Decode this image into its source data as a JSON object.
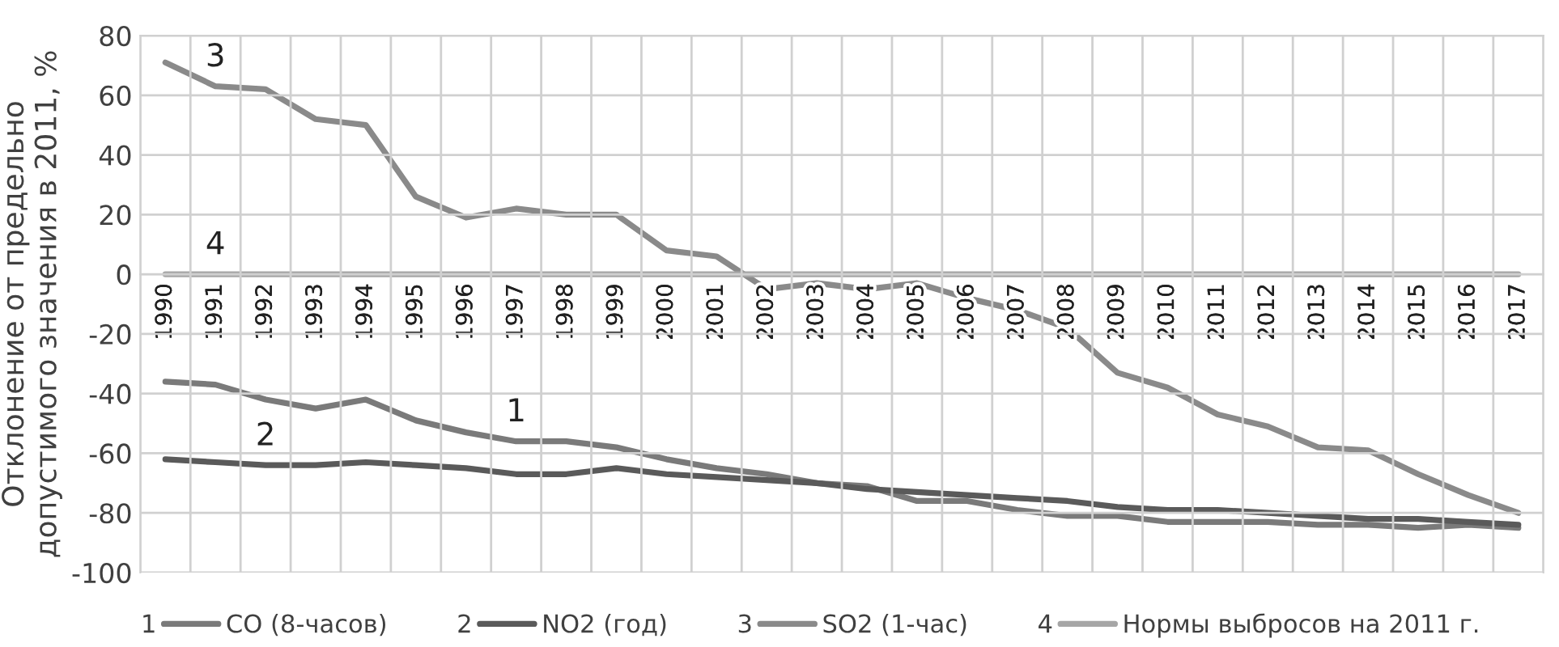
{
  "chart_data": {
    "type": "line",
    "ylabel": "Отклонение от предельно\nдопустимого значения в 2011, %",
    "categories": [
      "1990",
      "1991",
      "1992",
      "1993",
      "1994",
      "1995",
      "1996",
      "1997",
      "1998",
      "1999",
      "2000",
      "2001",
      "2002",
      "2003",
      "2004",
      "2005",
      "2006",
      "2007",
      "2008",
      "2009",
      "2010",
      "2011",
      "2012",
      "2013",
      "2014",
      "2015",
      "2016",
      "2017"
    ],
    "series": [
      {
        "name": "CO (8-часов)",
        "color": "#7a7a7a",
        "values": [
          -36,
          -37,
          -42,
          -45,
          -42,
          -49,
          -53,
          -56,
          -56,
          -58,
          -62,
          -65,
          -67,
          -70,
          -71,
          -76,
          -76,
          -79,
          -81,
          -81,
          -83,
          -83,
          -83,
          -84,
          -84,
          -85,
          -84,
          -85
        ]
      },
      {
        "name": "NO2 (год)",
        "color": "#5a5a5a",
        "values": [
          -62,
          -63,
          -64,
          -64,
          -63,
          -64,
          -65,
          -67,
          -67,
          -65,
          -67,
          -68,
          -69,
          -70,
          -72,
          -73,
          -74,
          -75,
          -76,
          -78,
          -79,
          -79,
          -80,
          -81,
          -82,
          -82,
          -83,
          -84
        ]
      },
      {
        "name": "SO2 (1-час)",
        "color": "#8a8a8a",
        "values": [
          71,
          63,
          62,
          52,
          50,
          26,
          19,
          22,
          20,
          20,
          8,
          6,
          -5,
          -3,
          -5,
          -3,
          -8,
          -12,
          -18,
          -33,
          -38,
          -47,
          -51,
          -58,
          -59,
          -67,
          -74,
          -80
        ]
      },
      {
        "name": "Нормы выбросов на 2011 г.",
        "color": "#a6a6a6",
        "values": [
          0,
          0,
          0,
          0,
          0,
          0,
          0,
          0,
          0,
          0,
          0,
          0,
          0,
          0,
          0,
          0,
          0,
          0,
          0,
          0,
          0,
          0,
          0,
          0,
          0,
          0,
          0,
          0
        ]
      }
    ],
    "annotations": [
      {
        "text": "1",
        "x": "1997",
        "y": -56
      },
      {
        "text": "2",
        "x": "1992",
        "y": -64
      },
      {
        "text": "3",
        "x": "1991",
        "y": 63
      },
      {
        "text": "4",
        "x": "1991",
        "y": 0
      }
    ],
    "ylim": [
      -100,
      80
    ],
    "yticks": [
      -100,
      -80,
      -60,
      -40,
      -20,
      0,
      20,
      40,
      60,
      80
    ],
    "grid": true,
    "legend": "bottom",
    "line_style": "solid",
    "marker": "none"
  }
}
